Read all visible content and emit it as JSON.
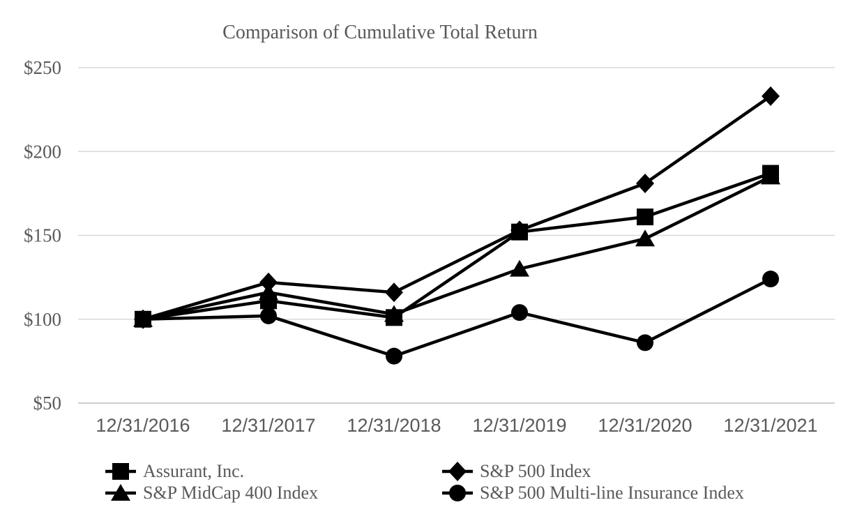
{
  "colors": {
    "text": "#595959",
    "series": "#000000",
    "gridline": "#D9D9D9",
    "baseline": "#BFBFBF",
    "background": "#FFFFFF"
  },
  "chart_data": {
    "type": "line",
    "title": "Comparison of Cumulative Total Return",
    "categories": [
      "12/31/2016",
      "12/31/2017",
      "12/31/2018",
      "12/31/2019",
      "12/31/2020",
      "12/31/2021"
    ],
    "series": [
      {
        "name": "Assurant, Inc.",
        "marker": "square",
        "values": [
          100,
          111,
          101,
          152,
          161,
          187
        ]
      },
      {
        "name": "S&P 500 Index",
        "marker": "diamond",
        "values": [
          100,
          122,
          116,
          153,
          181,
          233
        ]
      },
      {
        "name": "S&P MidCap 400 Index",
        "marker": "triangle",
        "values": [
          100,
          116,
          103,
          130,
          148,
          185
        ]
      },
      {
        "name": "S&P 500 Multi-line Insurance Index",
        "marker": "circle",
        "values": [
          100,
          102,
          78,
          104,
          86,
          124
        ]
      }
    ],
    "y_ticks": [
      "$250",
      "$200",
      "$150",
      "$100",
      "$50"
    ],
    "y_tick_values": [
      250,
      200,
      150,
      100,
      50
    ],
    "ylim": [
      50,
      250
    ],
    "xlabel": "",
    "ylabel": "",
    "grid": "horizontal",
    "legend_position": "bottom"
  }
}
